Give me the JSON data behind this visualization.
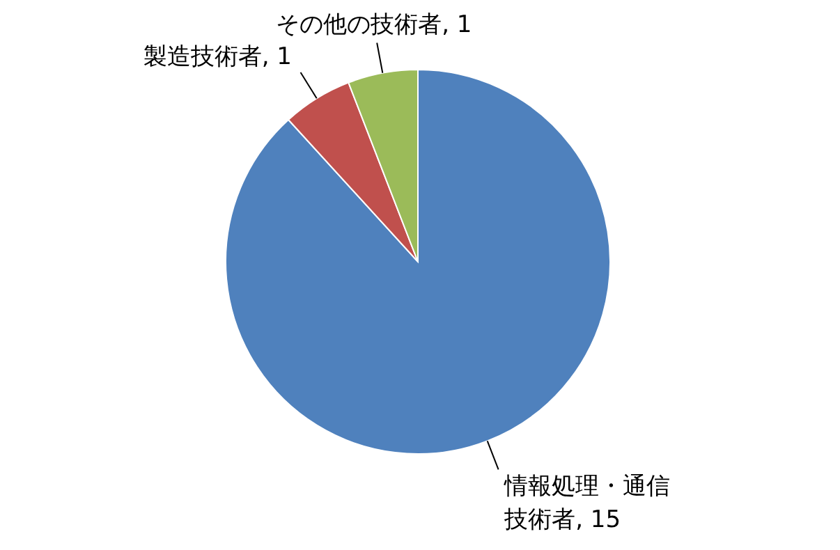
{
  "chart_data": {
    "type": "pie",
    "categories": [
      "情報処理・通信技術者",
      "製造技術者",
      "その他の技術者"
    ],
    "values": [
      15,
      1,
      1
    ],
    "value_labels": [
      ", 15",
      ", 1",
      ", 1"
    ],
    "colors": [
      "#4f81bd",
      "#c0504d",
      "#9bbb59"
    ]
  }
}
